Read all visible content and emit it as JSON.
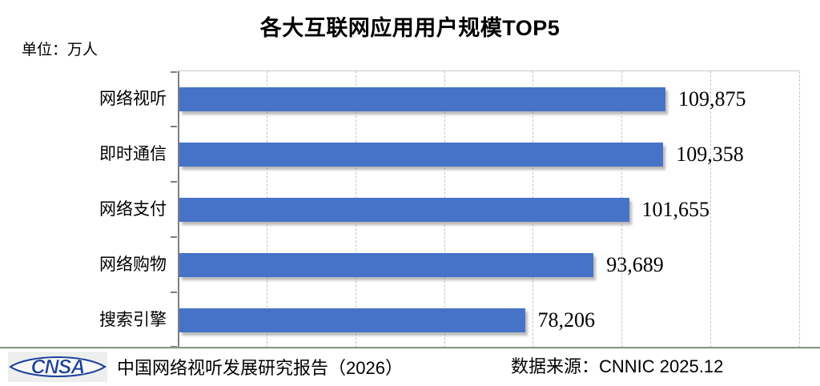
{
  "title": "各大互联网应用用户规模TOP5",
  "unit_label": "单位：万人",
  "chart_data": {
    "type": "bar",
    "orientation": "horizontal",
    "title": "各大互联网应用用户规模TOP5",
    "unit": "万人",
    "categories": [
      "网络视听",
      "即时通信",
      "网络支付",
      "网络购物",
      "搜索引擎"
    ],
    "values": [
      109875,
      109358,
      101655,
      93689,
      78206
    ],
    "value_labels": [
      "109,875",
      "109,358",
      "101,655",
      "93,689",
      "78,206"
    ],
    "xlim": [
      0,
      140000
    ],
    "grid_interval": 20000,
    "grid_style": "dashed-vertical",
    "legend": "none",
    "bar_color": "#4673C8"
  },
  "footer": {
    "logo_text": "CNSA",
    "source_left": "中国网络视听发展研究报告（2026）",
    "source_right": "数据来源：CNNIC 2025.12"
  },
  "colors": {
    "bar": "#4673C8",
    "axis": "#7f7f7f",
    "grid": "#c4c4c4",
    "divider": "#8a9a8a",
    "logo_blue": "#1b3e9b",
    "text": "#000000"
  }
}
